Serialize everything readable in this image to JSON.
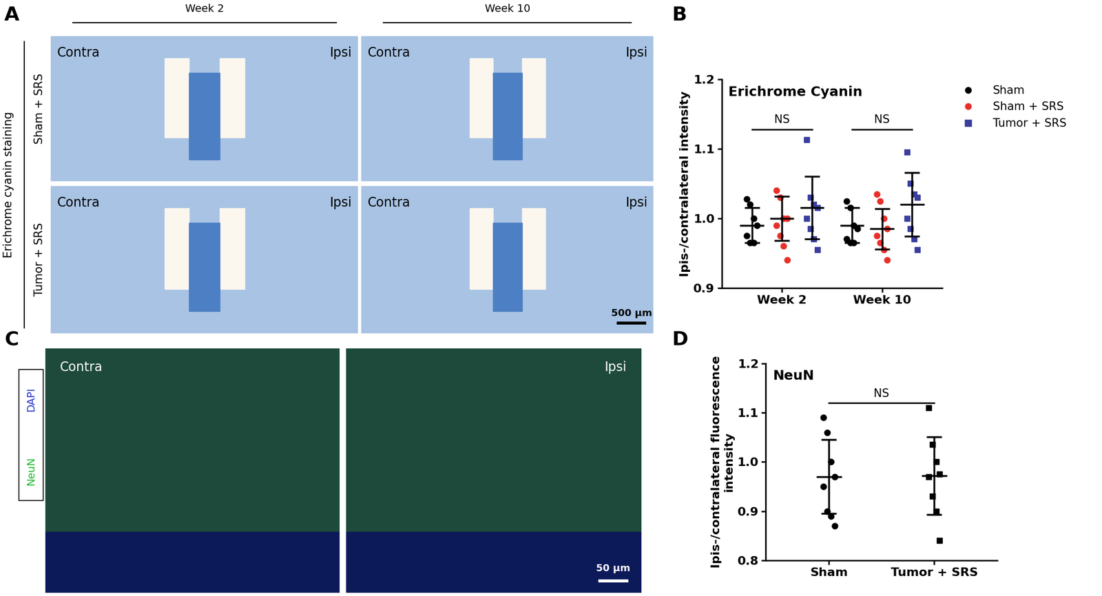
{
  "panel_labels": [
    "A",
    "B",
    "C",
    "D"
  ],
  "panel_A": {
    "columns": [
      "Week 2",
      "Week 10"
    ],
    "rows": [
      "Sham + SRS",
      "Tumor + SRS"
    ],
    "stain": "Erichrome cyanin staining",
    "side_left": "Contra",
    "side_right": "Ipsi",
    "scale_bar": "500 µm"
  },
  "panel_C": {
    "sides": [
      "Contra",
      "Ipsi"
    ],
    "channels": [
      {
        "name": "DAPI",
        "color": "#2233cc"
      },
      {
        "name": "NeuN",
        "color": "#22bb33"
      }
    ],
    "scale_bar": "50 µm"
  },
  "chart_data": [
    {
      "type": "scatter",
      "title": "Erichrome Cyanin",
      "ylabel": "Ipis-/contralateral intensity",
      "categories": [
        "Week 2",
        "Week 10"
      ],
      "series": [
        {
          "name": "Sham",
          "color": "#000000",
          "marker": "circle",
          "values": [
            [
              1.028,
              1.02,
              1.0,
              0.99,
              0.975,
              0.965,
              0.965
            ],
            [
              1.025,
              1.015,
              0.99,
              0.985,
              0.97,
              0.965,
              0.965
            ]
          ],
          "mean": [
            0.99,
            0.99
          ],
          "sd": [
            0.025,
            0.025
          ]
        },
        {
          "name": "Sham + SRS",
          "color": "#e8302a",
          "marker": "circle",
          "values": [
            [
              1.04,
              1.03,
              1.0,
              1.0,
              0.99,
              0.975,
              0.96,
              0.94
            ],
            [
              1.035,
              1.025,
              1.0,
              0.985,
              0.975,
              0.965,
              0.955,
              0.94
            ]
          ],
          "mean": [
            1.0,
            0.985
          ],
          "sd": [
            0.032,
            0.029
          ]
        },
        {
          "name": "Tumor + SRS",
          "color": "#3a3f9e",
          "marker": "square",
          "values": [
            [
              1.113,
              1.03,
              1.02,
              1.015,
              1.0,
              0.985,
              0.97,
              0.955
            ],
            [
              1.095,
              1.05,
              1.035,
              1.03,
              1.0,
              0.985,
              0.97,
              0.955
            ]
          ],
          "mean": [
            1.015,
            1.02
          ],
          "sd": [
            0.045,
            0.046
          ]
        }
      ],
      "ylim": [
        0.9,
        1.2
      ],
      "yticks": [
        0.9,
        1.0,
        1.1,
        1.2
      ],
      "legend": "upper left",
      "annotations": [
        "NS",
        "NS"
      ]
    },
    {
      "type": "scatter",
      "title": "NeuN",
      "ylabel": "Ipis-/contralateral fluorescence\nintensity",
      "categories": [
        "Sham",
        "Tumor + SRS"
      ],
      "series": [
        {
          "color": "#000000",
          "marker": "circle",
          "values": [
            [
              1.09,
              1.06,
              1.0,
              0.97,
              0.95,
              0.9,
              0.89,
              0.87
            ],
            null
          ],
          "mean": [
            0.97,
            null
          ],
          "sd": [
            0.075,
            null
          ]
        },
        {
          "color": "#000000",
          "marker": "square",
          "values": [
            null,
            [
              1.11,
              1.035,
              1.0,
              0.975,
              0.97,
              0.93,
              0.9,
              0.84
            ]
          ],
          "mean": [
            null,
            0.972
          ],
          "sd": [
            null,
            0.079
          ]
        }
      ],
      "ylim": [
        0.8,
        1.2
      ],
      "yticks": [
        0.8,
        0.9,
        1.0,
        1.1,
        1.2
      ],
      "annotations": [
        "NS"
      ]
    }
  ]
}
